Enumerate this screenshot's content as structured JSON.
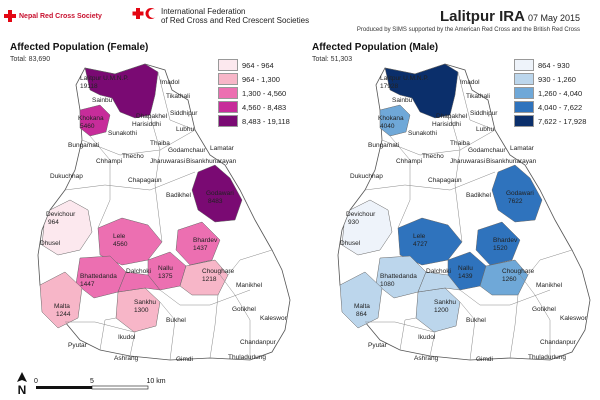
{
  "header": {
    "org1": "Nepal Red Cross Society",
    "org2_line1": "International Federation",
    "org2_line2": "of Red Cross and Red Crescent Societies",
    "title": "Lalitpur IRA",
    "date": "07 May 2015",
    "credit": "Produced by SIMS supported by the American Red Cross and the British Red Cross"
  },
  "female": {
    "title": "Affected Population (Female)",
    "total": "Total: 83,690",
    "legend": [
      {
        "label": "964 - 964",
        "color": "#fce8ee"
      },
      {
        "label": "964 - 1,300",
        "color": "#f7b6c8"
      },
      {
        "label": "1,300 - 4,560",
        "color": "#ec6fb1"
      },
      {
        "label": "4,560 - 8,483",
        "color": "#c72c9a"
      },
      {
        "label": "8,483 - 19,118",
        "color": "#7a0a73"
      }
    ]
  },
  "male": {
    "title": "Affected Population (Male)",
    "total": "Total: 51,303",
    "legend": [
      {
        "label": "864 - 930",
        "color": "#eef3fa"
      },
      {
        "label": "930 - 1,260",
        "color": "#bcd6ec"
      },
      {
        "label": "1,260 - 4,040",
        "color": "#6fa8d8"
      },
      {
        "label": "4,040 - 7,622",
        "color": "#2f73bd"
      },
      {
        "label": "7,622 - 17,928",
        "color": "#0b2f6b"
      }
    ]
  },
  "places": {
    "lalitpur": "Lalitpur U.M.N.P.",
    "imadol": "Imadol",
    "sainbu": "Sainbu",
    "tikathali": "Tikathali",
    "khokana": "Khokana",
    "dhapakhel": "Dhapakhel",
    "siddhipur": "Siddhipur",
    "harisiddhi": "Harisiddhi",
    "sunakothi": "Sunakothi",
    "lubhu": "Lubhu",
    "bungamati": "Bungamati",
    "thaiba": "Thaiba",
    "godamchaur": "Godamchaur",
    "lamatar": "Lamatar",
    "chhampi": "Chhampi",
    "thecho": "Thecho",
    "jharuwarasi": "Jharuwarasi",
    "bisankhunarayan": "Bisankhunarayan",
    "dukuchhap": "Dukuchhap",
    "chapagaun": "Chapagaun",
    "badikhel": "Badikhel",
    "godawari": "Godawari",
    "devichour": "Devichour",
    "lele": "Lele",
    "bhardev": "Bhardev",
    "dhusel": "Dhusel",
    "nallu": "Nallu",
    "dalchoki": "Dalchoki",
    "choughare": "Choughare",
    "bhattedanda": "Bhattedanda",
    "malta": "Malta",
    "sankhu": "Sankhu",
    "manikhel": "Manikhel",
    "bukhel": "Bukhel",
    "gotikhel": "Gotikhel",
    "kaleswor": "Kaleswor",
    "ikudol": "Ikudol",
    "pyutar": "Pyutar",
    "chandanpur": "Chandanpur",
    "ashrang": "Ashrang",
    "gimdi": "Gimdi",
    "thuladurlung": "Thuladurlung"
  },
  "female_values": {
    "lalitpur": "19118",
    "khokana": "5460",
    "godawari": "8483",
    "devichour": "964",
    "lele": "4560",
    "bhardev": "1437",
    "nallu": "1375",
    "choughare": "1218",
    "bhattedanda": "1447",
    "malta": "1244",
    "sankhu": "1300"
  },
  "male_values": {
    "lalitpur": "17928",
    "khokana": "4040",
    "godawari": "7622",
    "devichour": "930",
    "lele": "4727",
    "bhardev": "1520",
    "nallu": "1439",
    "choughare": "1260",
    "bhattedanda": "1080",
    "malta": "864",
    "sankhu": "1200"
  },
  "scale": {
    "tick0": "0",
    "tick1": "5",
    "tick2": "10 km",
    "north": "N"
  }
}
